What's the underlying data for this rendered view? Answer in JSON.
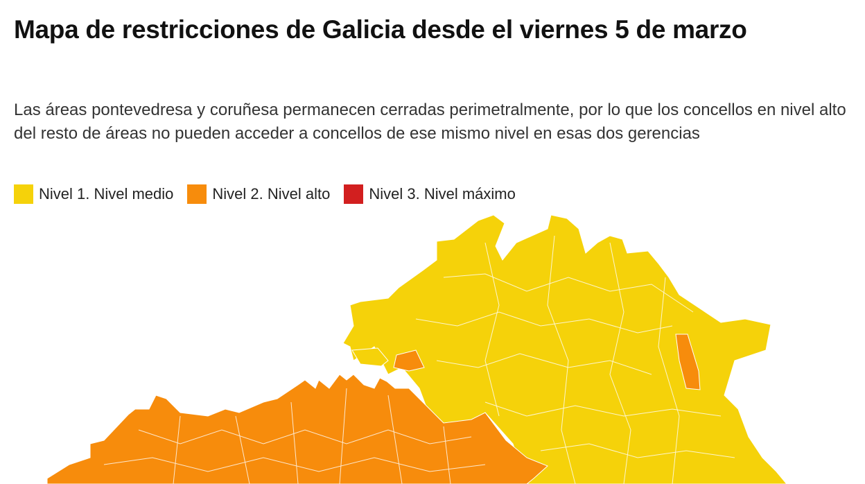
{
  "title": "Mapa de restricciones de Galicia desde el viernes 5 de marzo",
  "subtitle": "Las áreas pontevedresa y coruñesa permanecen cerradas perimetralmente, por lo que los concellos en nivel alto del resto de áreas no pueden acceder a concellos de ese mismo nivel en esas dos gerencias",
  "legend": [
    {
      "label": "Nivel 1. Nivel medio",
      "color": "#f5d20a"
    },
    {
      "label": "Nivel 2. Nivel alto",
      "color": "#f78c0c"
    },
    {
      "label": "Nivel 3. Nivel máximo",
      "color": "#d21f1f"
    }
  ]
}
